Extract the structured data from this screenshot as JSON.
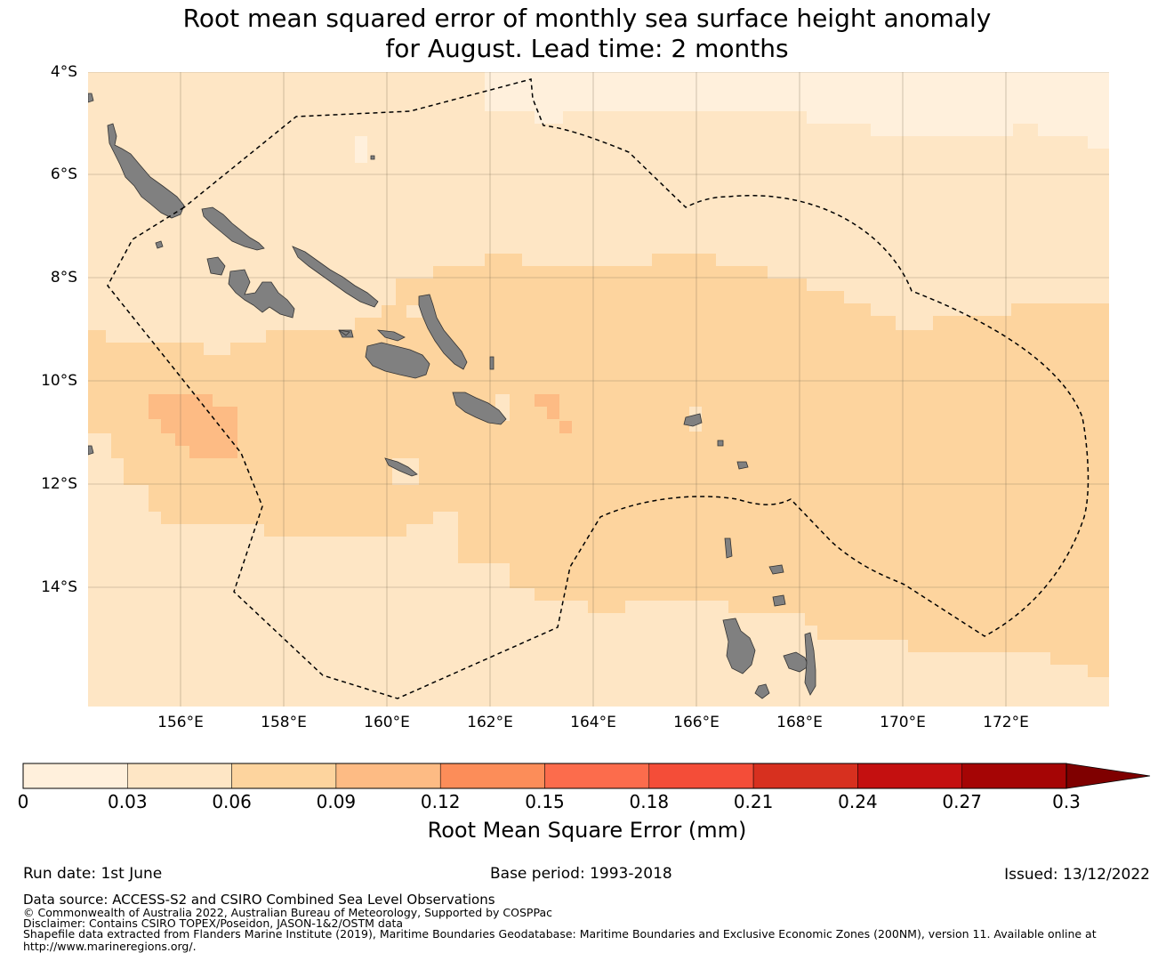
{
  "title": {
    "line1": "Root mean squared error of monthly sea surface height anomaly",
    "line2": "for August. Lead time: 2 months"
  },
  "map": {
    "lat_labels": [
      "4°S",
      "6°S",
      "8°S",
      "10°S",
      "12°S",
      "14°S"
    ],
    "lon_labels": [
      "156°E",
      "158°E",
      "160°E",
      "162°E",
      "164°E",
      "166°E",
      "168°E",
      "170°E",
      "172°E"
    ],
    "land_color": "#808080",
    "zone_boundary_style": "dashed black"
  },
  "colorbar": {
    "ticks": [
      "0",
      "0.03",
      "0.06",
      "0.09",
      "0.12",
      "0.15",
      "0.18",
      "0.21",
      "0.24",
      "0.27",
      "0.3"
    ],
    "colors": [
      "#fff0dc",
      "#fee6c5",
      "#fdd49e",
      "#fdbb84",
      "#fc8d59",
      "#fc6c4c",
      "#f44d38",
      "#d7301f",
      "#c41010",
      "#a50505"
    ],
    "extend_color": "#7f0000",
    "label": "Root Mean Square Error (mm)"
  },
  "footer": {
    "run_date": "Run date: 1st June",
    "base_period": "Base period: 1993-2018",
    "issued": "Issued: 13/12/2022",
    "data_source": "Data source: ACCESS-S2 and CSIRO Combined Sea Level Observations",
    "copyright": "© Commonwealth of Australia 2022, Australian Bureau of Meteorology, Supported by COSPPac",
    "disclaimer": "Disclaimer: Contains CSIRO TOPEX/Poseidon, JASON-1&2/OSTM data",
    "shapefile_1": "Shapefile data extracted from Flanders Marine Institute (2019), Maritime Boundaries Geodatabase: Maritime Boundaries and Exclusive Economic Zones (200NM), version 11. Available online at",
    "shapefile_2": "http://www.marineregions.org/."
  }
}
